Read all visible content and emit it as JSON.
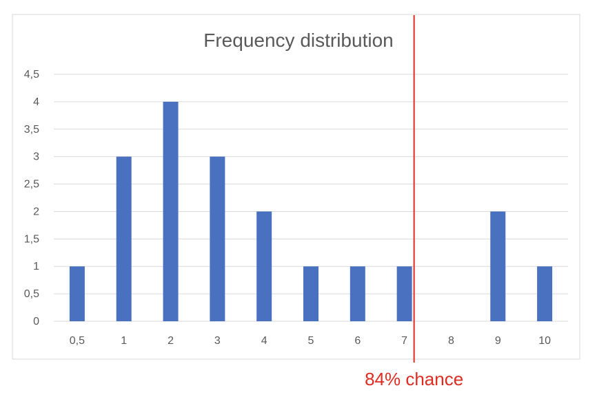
{
  "chart_data": {
    "type": "bar",
    "title": "Frequency distribution",
    "categories": [
      "0,5",
      "1",
      "2",
      "3",
      "4",
      "5",
      "6",
      "7",
      "8",
      "9",
      "10"
    ],
    "values": [
      1,
      3,
      4,
      3,
      2,
      1,
      1,
      1,
      0,
      2,
      1
    ],
    "ylim": [
      0,
      4.5
    ],
    "yticks": [
      "0",
      "0,5",
      "1",
      "1,5",
      "2",
      "2,5",
      "3",
      "3,5",
      "4",
      "4,5"
    ],
    "xlabel": "",
    "ylabel": "",
    "grid": true,
    "legend": "none",
    "bar_color": "#4a70c0",
    "annotation": {
      "text": "84% chance",
      "marker_after_category": "7",
      "color": "#e02b20"
    }
  }
}
